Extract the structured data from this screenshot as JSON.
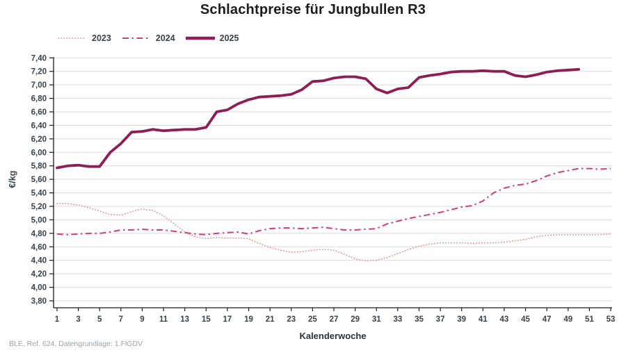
{
  "title": "Schlachtpreise für Jungbullen R3",
  "footer": "BLE, Ref. 624, Datengrundlage: 1.FlGDV",
  "chart_data": {
    "type": "line",
    "title": "Schlachtpreise für Jungbullen R3",
    "xlabel": "Kalenderwoche",
    "ylabel": "€/kg",
    "ylim": [
      3.8,
      7.4
    ],
    "ytick_step": 0.2,
    "ytick_decimal_separator": ",",
    "xlim": [
      1,
      53
    ],
    "xticks": [
      1,
      3,
      5,
      7,
      9,
      11,
      13,
      15,
      17,
      19,
      21,
      23,
      25,
      27,
      29,
      31,
      33,
      35,
      37,
      39,
      41,
      43,
      45,
      47,
      49,
      51,
      53
    ],
    "grid": "horizontal",
    "legend_position": "top-left",
    "axis_color": "#1a1a1a",
    "grid_color": "#d9dbdd",
    "tick_label_color": "#36424a",
    "series": [
      {
        "name": "2023",
        "color": "#f2918d",
        "style": "dotted",
        "width": 1.6,
        "start_week": 1,
        "values": [
          5.24,
          5.24,
          5.22,
          5.18,
          5.13,
          5.08,
          5.07,
          5.12,
          5.16,
          5.14,
          5.06,
          4.94,
          4.82,
          4.75,
          4.72,
          4.74,
          4.73,
          4.73,
          4.72,
          4.65,
          4.59,
          4.55,
          4.52,
          4.53,
          4.55,
          4.56,
          4.55,
          4.49,
          4.42,
          4.39,
          4.4,
          4.44,
          4.5,
          4.56,
          4.61,
          4.64,
          4.66,
          4.66,
          4.66,
          4.65,
          4.66,
          4.66,
          4.67,
          4.69,
          4.71,
          4.75,
          4.77,
          4.78,
          4.78,
          4.78,
          4.78,
          4.78,
          4.79
        ]
      },
      {
        "name": "2024",
        "color": "#d23c7c",
        "style": "dashdot",
        "width": 2,
        "start_week": 1,
        "values": [
          4.79,
          4.78,
          4.79,
          4.8,
          4.8,
          4.82,
          4.85,
          4.85,
          4.86,
          4.85,
          4.85,
          4.83,
          4.81,
          4.79,
          4.78,
          4.8,
          4.81,
          4.82,
          4.79,
          4.84,
          4.87,
          4.88,
          4.88,
          4.87,
          4.88,
          4.89,
          4.87,
          4.85,
          4.85,
          4.86,
          4.87,
          4.94,
          4.98,
          5.02,
          5.05,
          5.08,
          5.11,
          5.15,
          5.19,
          5.21,
          5.28,
          5.4,
          5.47,
          5.51,
          5.53,
          5.58,
          5.65,
          5.7,
          5.73,
          5.76,
          5.76,
          5.75,
          5.76
        ]
      },
      {
        "name": "2025",
        "color": "#8e1c56",
        "style": "solid",
        "width": 3.8,
        "start_week": 1,
        "values": [
          5.77,
          5.8,
          5.81,
          5.79,
          5.79,
          6.0,
          6.13,
          6.3,
          6.31,
          6.34,
          6.32,
          6.33,
          6.34,
          6.34,
          6.37,
          6.6,
          6.63,
          6.72,
          6.78,
          6.82,
          6.83,
          6.84,
          6.86,
          6.93,
          7.05,
          7.06,
          7.1,
          7.12,
          7.12,
          7.09,
          6.94,
          6.88,
          6.94,
          6.96,
          7.11,
          7.14,
          7.16,
          7.19,
          7.2,
          7.2,
          7.21,
          7.2,
          7.2,
          7.14,
          7.12,
          7.15,
          7.19,
          7.21,
          7.22,
          7.23
        ]
      }
    ]
  }
}
